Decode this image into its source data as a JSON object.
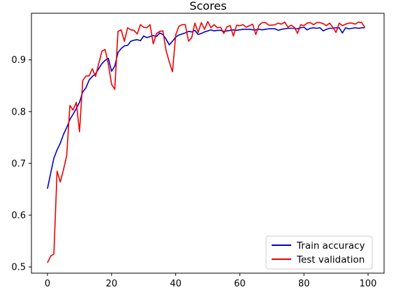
{
  "chart_data": {
    "type": "line",
    "title": "Scores",
    "xlabel": "",
    "ylabel": "",
    "xlim": [
      -5,
      105
    ],
    "ylim": [
      0.488,
      0.99
    ],
    "xticks": [
      0,
      20,
      40,
      60,
      80,
      100
    ],
    "yticks": [
      0.5,
      0.6,
      0.7,
      0.8,
      0.9
    ],
    "xtick_labels": [
      "0",
      "20",
      "40",
      "60",
      "80",
      "100"
    ],
    "ytick_labels": [
      "0.5",
      "0.6",
      "0.7",
      "0.8",
      "0.9"
    ],
    "grid": false,
    "legend_position": "lower right",
    "series": [
      {
        "name": "Train accuracy",
        "color": "#0000cc",
        "x": [
          0,
          1,
          2,
          3,
          4,
          5,
          6,
          7,
          8,
          9,
          10,
          11,
          12,
          13,
          14,
          15,
          16,
          17,
          18,
          19,
          20,
          21,
          22,
          23,
          24,
          25,
          26,
          27,
          28,
          29,
          30,
          31,
          32,
          33,
          34,
          35,
          36,
          37,
          38,
          39,
          40,
          41,
          42,
          43,
          44,
          45,
          46,
          47,
          48,
          49,
          50,
          51,
          52,
          53,
          54,
          55,
          56,
          57,
          58,
          59,
          60,
          61,
          62,
          63,
          64,
          65,
          66,
          67,
          68,
          69,
          70,
          71,
          72,
          73,
          74,
          75,
          76,
          77,
          78,
          79,
          80,
          81,
          82,
          83,
          84,
          85,
          86,
          87,
          88,
          89,
          90,
          91,
          92,
          93,
          94,
          95,
          96,
          97,
          98,
          99
        ],
        "values": [
          0.651,
          0.681,
          0.71,
          0.726,
          0.739,
          0.756,
          0.769,
          0.785,
          0.795,
          0.806,
          0.818,
          0.838,
          0.846,
          0.861,
          0.868,
          0.873,
          0.883,
          0.893,
          0.899,
          0.903,
          0.878,
          0.888,
          0.914,
          0.922,
          0.927,
          0.928,
          0.936,
          0.938,
          0.939,
          0.937,
          0.946,
          0.943,
          0.945,
          0.947,
          0.945,
          0.952,
          0.949,
          0.94,
          0.929,
          0.936,
          0.944,
          0.948,
          0.95,
          0.952,
          0.955,
          0.954,
          0.957,
          0.949,
          0.951,
          0.954,
          0.956,
          0.958,
          0.956,
          0.957,
          0.957,
          0.955,
          0.956,
          0.957,
          0.958,
          0.957,
          0.958,
          0.959,
          0.959,
          0.959,
          0.958,
          0.958,
          0.959,
          0.958,
          0.959,
          0.96,
          0.96,
          0.96,
          0.957,
          0.959,
          0.96,
          0.961,
          0.961,
          0.961,
          0.96,
          0.962,
          0.963,
          0.958,
          0.961,
          0.962,
          0.961,
          0.962,
          0.956,
          0.959,
          0.961,
          0.961,
          0.962,
          0.962,
          0.952,
          0.962,
          0.96,
          0.961,
          0.962,
          0.961,
          0.962,
          0.962
        ]
      },
      {
        "name": "Test validation",
        "color": "#ee0000",
        "x": [
          0,
          1,
          2,
          3,
          4,
          5,
          6,
          7,
          8,
          9,
          10,
          11,
          12,
          13,
          14,
          15,
          16,
          17,
          18,
          19,
          20,
          21,
          22,
          23,
          24,
          25,
          26,
          27,
          28,
          29,
          30,
          31,
          32,
          33,
          34,
          35,
          36,
          37,
          38,
          39,
          40,
          41,
          42,
          43,
          44,
          45,
          46,
          47,
          48,
          49,
          50,
          51,
          52,
          53,
          54,
          55,
          56,
          57,
          58,
          59,
          60,
          61,
          62,
          63,
          64,
          65,
          66,
          67,
          68,
          69,
          70,
          71,
          72,
          73,
          74,
          75,
          76,
          77,
          78,
          79,
          80,
          81,
          82,
          83,
          84,
          85,
          86,
          87,
          88,
          89,
          90,
          91,
          92,
          93,
          94,
          95,
          96,
          97,
          98,
          99
        ],
        "values": [
          0.508,
          0.521,
          0.525,
          0.685,
          0.664,
          0.688,
          0.715,
          0.812,
          0.803,
          0.818,
          0.761,
          0.86,
          0.869,
          0.869,
          0.883,
          0.868,
          0.893,
          0.917,
          0.92,
          0.891,
          0.853,
          0.843,
          0.955,
          0.958,
          0.936,
          0.962,
          0.958,
          0.957,
          0.95,
          0.968,
          0.963,
          0.962,
          0.968,
          0.931,
          0.951,
          0.955,
          0.956,
          0.918,
          0.896,
          0.877,
          0.948,
          0.965,
          0.968,
          0.968,
          0.936,
          0.943,
          0.971,
          0.953,
          0.972,
          0.959,
          0.974,
          0.962,
          0.968,
          0.962,
          0.963,
          0.951,
          0.964,
          0.966,
          0.946,
          0.967,
          0.966,
          0.968,
          0.963,
          0.966,
          0.969,
          0.949,
          0.967,
          0.972,
          0.972,
          0.967,
          0.967,
          0.968,
          0.971,
          0.969,
          0.973,
          0.963,
          0.967,
          0.963,
          0.951,
          0.968,
          0.966,
          0.971,
          0.972,
          0.968,
          0.972,
          0.972,
          0.97,
          0.966,
          0.971,
          0.963,
          0.953,
          0.971,
          0.966,
          0.969,
          0.971,
          0.971,
          0.969,
          0.973,
          0.972,
          0.963
        ]
      }
    ]
  }
}
